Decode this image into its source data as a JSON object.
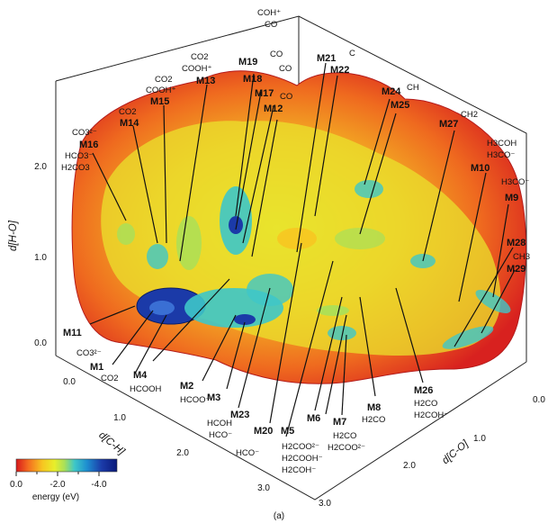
{
  "chart_data": {
    "type": "3d-energy-landscape",
    "caption": "(a)",
    "axes": {
      "x": {
        "label": "d[C-H]",
        "ticks": [
          "0.0",
          "1.0",
          "2.0",
          "3.0"
        ]
      },
      "y": {
        "label": "d[C-O]",
        "ticks": [
          "0.0",
          "1.0",
          "2.0",
          "3.0"
        ]
      },
      "z": {
        "label": "d[H-O]",
        "ticks": [
          "0.0",
          "1.0",
          "2.0"
        ]
      }
    },
    "colorbar": {
      "label": "energy (eV)",
      "ticks": [
        "0.0",
        "-2.0",
        "-4.0"
      ],
      "range": [
        0.0,
        -4.8
      ],
      "colors": [
        "#d7191c",
        "#f46d20",
        "#f7c621",
        "#e8ee2a",
        "#a8e05a",
        "#3ec7c8",
        "#1e8fd0",
        "#1b3aa8",
        "#0a1a7a"
      ]
    },
    "minima": [
      {
        "id": "M1",
        "species": [
          "CO3²⁻",
          "CO2"
        ]
      },
      {
        "id": "M2",
        "species": [
          "HCOO⁻"
        ]
      },
      {
        "id": "M3",
        "species": [
          "HCOH",
          "HCO⁻"
        ]
      },
      {
        "id": "M4",
        "species": [
          "HCOOH"
        ]
      },
      {
        "id": "M5",
        "species": [
          "H2COO²⁻",
          "H2COOH⁻",
          "H2COH⁻"
        ]
      },
      {
        "id": "M6",
        "species": []
      },
      {
        "id": "M7",
        "species": [
          "H2CO",
          "H2COO²⁻"
        ]
      },
      {
        "id": "M8",
        "species": [
          "H2CO"
        ]
      },
      {
        "id": "M9",
        "species": [
          "H3CO⁻"
        ]
      },
      {
        "id": "M10",
        "species": [
          "H3COH",
          "H3CO⁻"
        ]
      },
      {
        "id": "M11",
        "species": []
      },
      {
        "id": "M12",
        "species": [
          "CO"
        ]
      },
      {
        "id": "M13",
        "species": [
          "CO2",
          "COOH⁺"
        ]
      },
      {
        "id": "M14",
        "species": [
          "CO2"
        ]
      },
      {
        "id": "M15",
        "species": [
          "CO2",
          "COOH⁺"
        ]
      },
      {
        "id": "M16",
        "species": [
          "CO3²⁻",
          "HCO3⁻",
          "H2CO3"
        ]
      },
      {
        "id": "M17",
        "species": [
          "CO"
        ]
      },
      {
        "id": "M18",
        "species": [
          "CO"
        ]
      },
      {
        "id": "M19",
        "species": [
          "COH⁺",
          "CO"
        ]
      },
      {
        "id": "M20",
        "species": [
          "HCO⁻"
        ]
      },
      {
        "id": "M21",
        "species": []
      },
      {
        "id": "M22",
        "species": [
          "C"
        ]
      },
      {
        "id": "M23",
        "species": []
      },
      {
        "id": "M24",
        "species": [
          "CH"
        ]
      },
      {
        "id": "M25",
        "species": []
      },
      {
        "id": "M26",
        "species": [
          "H2CO",
          "H2COH⁻"
        ]
      },
      {
        "id": "M27",
        "species": [
          "CH2"
        ]
      },
      {
        "id": "M28",
        "species": [
          "CH3"
        ]
      },
      {
        "id": "M29",
        "species": []
      }
    ]
  }
}
